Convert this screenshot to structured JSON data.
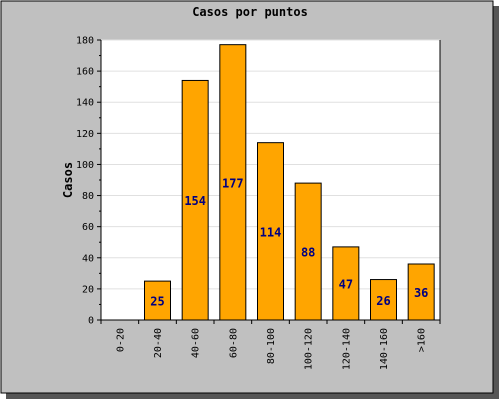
{
  "chart_data": {
    "type": "bar",
    "title": "Casos por puntos",
    "xlabel": "",
    "ylabel": "Casos",
    "categories": [
      "0-20",
      "20-40",
      "40-60",
      "60-80",
      "80-100",
      "100-120",
      "120-140",
      "140-160",
      ">160"
    ],
    "values": [
      0,
      25,
      154,
      177,
      114,
      88,
      47,
      26,
      36
    ],
    "data_labels": [
      "",
      "25",
      "154",
      "177",
      "114",
      "88",
      "47",
      "26",
      "36"
    ],
    "y_ticks": [
      0,
      20,
      40,
      60,
      80,
      100,
      120,
      140,
      160,
      180
    ],
    "ylim": [
      0,
      180
    ],
    "grid": true,
    "legend": "none",
    "colors": {
      "bar": "#ffa500",
      "bar_outline": "#000000",
      "frame_bg": "#c0c0c0",
      "plot_bg": "#ffffff",
      "grid": "#e0e0e0",
      "data_label": "#000080",
      "shadow": "#555555"
    }
  }
}
